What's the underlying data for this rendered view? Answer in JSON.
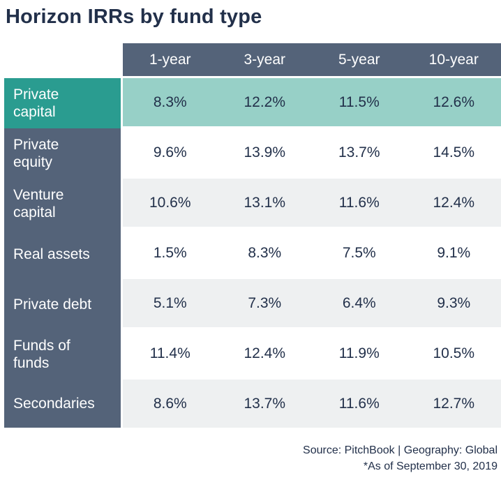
{
  "title": "Horizon IRRs by fund type",
  "chart_data": {
    "type": "table",
    "title": "Horizon IRRs by fund type",
    "column_headers": [
      "1-year",
      "3-year",
      "5-year",
      "10-year"
    ],
    "rows": [
      {
        "label": "Private\ncapital",
        "highlighted": true,
        "values": [
          "8.3%",
          "12.2%",
          "11.5%",
          "12.6%"
        ]
      },
      {
        "label": "Private\nequity",
        "highlighted": false,
        "values": [
          "9.6%",
          "13.9%",
          "13.7%",
          "14.5%"
        ]
      },
      {
        "label": "Venture\ncapital",
        "highlighted": false,
        "values": [
          "10.6%",
          "13.1%",
          "11.6%",
          "12.4%"
        ]
      },
      {
        "label": "Real assets",
        "highlighted": false,
        "values": [
          "1.5%",
          "8.3%",
          "7.5%",
          "9.1%"
        ]
      },
      {
        "label": "Private debt",
        "highlighted": false,
        "values": [
          "5.1%",
          "7.3%",
          "6.4%",
          "9.3%"
        ]
      },
      {
        "label": "Funds of\nfunds",
        "highlighted": false,
        "values": [
          "11.4%",
          "12.4%",
          "11.9%",
          "10.5%"
        ]
      },
      {
        "label": "Secondaries",
        "highlighted": false,
        "values": [
          "8.6%",
          "13.7%",
          "11.6%",
          "12.7%"
        ]
      }
    ]
  },
  "footer": {
    "source_line": "Source: PitchBook | Geography: Global",
    "asof_line": "*As of September 30, 2019"
  },
  "colors": {
    "header_bg": "#546379",
    "label_bg": "#546379",
    "highlight_label_bg": "#2A9C90",
    "highlight_row_bg": "#97D0C7",
    "row_alt_bg": "#EEF0F1",
    "row_bg": "#FFFFFF",
    "text_dark": "#22304A",
    "text_light": "#FFFFFF"
  }
}
